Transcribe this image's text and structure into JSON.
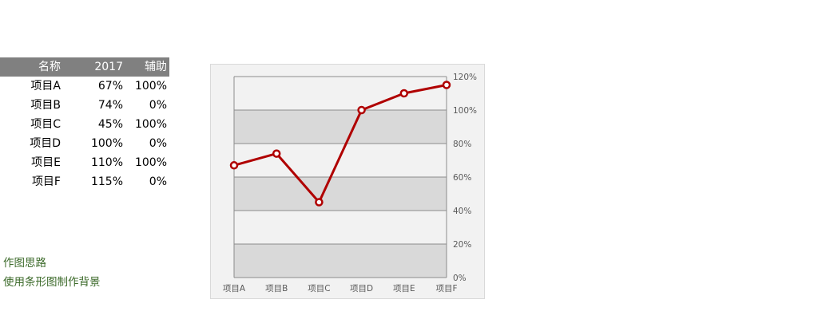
{
  "table": {
    "headers": [
      "名称",
      "2017",
      "辅助"
    ],
    "rows": [
      [
        "项目A",
        "67%",
        "100%"
      ],
      [
        "项目B",
        "74%",
        "0%"
      ],
      [
        "项目C",
        "45%",
        "100%"
      ],
      [
        "项目D",
        "100%",
        "0%"
      ],
      [
        "项目E",
        "110%",
        "100%"
      ],
      [
        "项目F",
        "115%",
        "0%"
      ]
    ]
  },
  "notes": {
    "line1": "作图思路",
    "line2": "使用条形图制作背景"
  },
  "chart_data": {
    "type": "line",
    "categories": [
      "项目A",
      "项目B",
      "项目C",
      "项目D",
      "项目E",
      "项目F"
    ],
    "series": [
      {
        "values": [
          67,
          74,
          45,
          100,
          110,
          115
        ]
      }
    ],
    "y_ticks": [
      "0%",
      "20%",
      "40%",
      "60%",
      "80%",
      "100%",
      "120%"
    ],
    "ylim": [
      0,
      120
    ],
    "y_axis_position": "right",
    "background_bands": "alternating gray bands every 20%",
    "grid": true,
    "line_color": "#b00000",
    "band_color": "#d9d9d9",
    "plot_background": "#f2f2f2"
  }
}
